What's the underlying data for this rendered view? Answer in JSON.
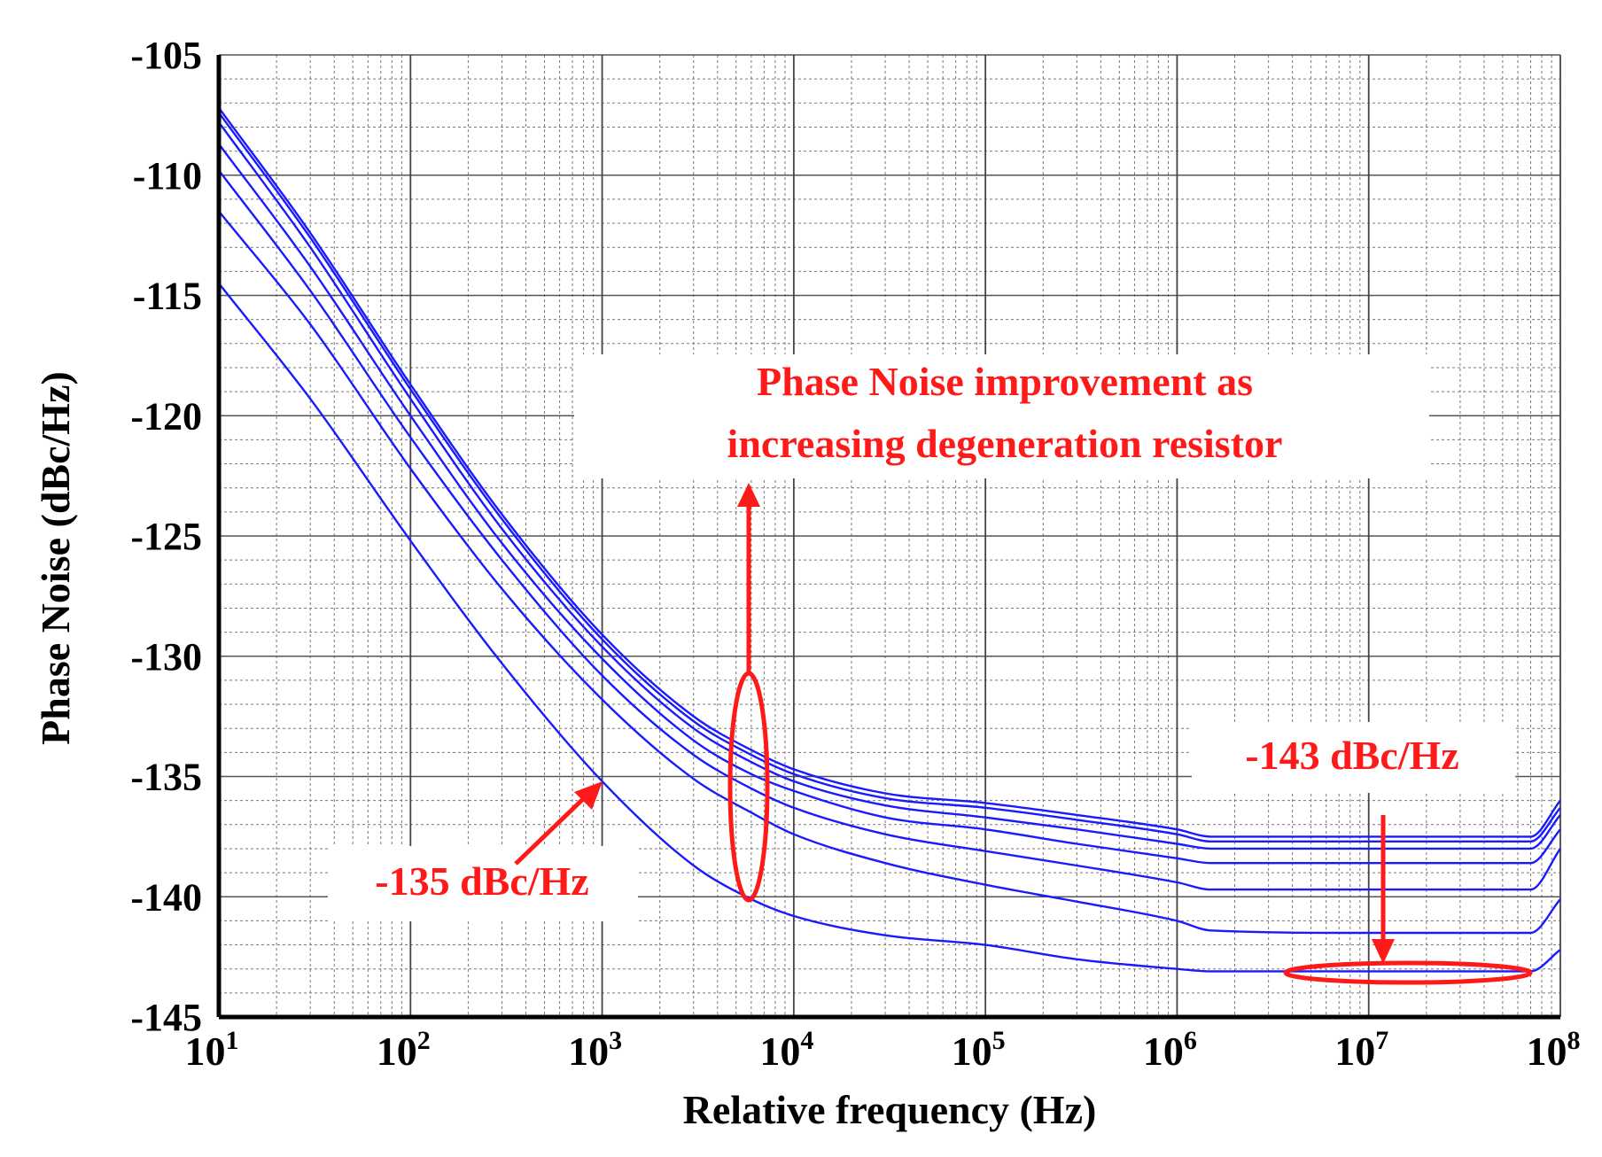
{
  "chart_data": {
    "type": "line",
    "title": "",
    "xlabel": "Relative frequency (Hz)",
    "ylabel": "Phase Noise (dBc/Hz)",
    "x_scale": "log",
    "xlim": [
      10,
      100000000
    ],
    "ylim": [
      -145,
      -105
    ],
    "x_ticks": [
      {
        "value": 10,
        "base": "10",
        "exp": "1"
      },
      {
        "value": 100,
        "base": "10",
        "exp": "2"
      },
      {
        "value": 1000,
        "base": "10",
        "exp": "3"
      },
      {
        "value": 10000,
        "base": "10",
        "exp": "4"
      },
      {
        "value": 100000,
        "base": "10",
        "exp": "5"
      },
      {
        "value": 1000000,
        "base": "10",
        "exp": "6"
      },
      {
        "value": 10000000,
        "base": "10",
        "exp": "7"
      },
      {
        "value": 100000000,
        "base": "10",
        "exp": "8"
      }
    ],
    "y_ticks": [
      -105,
      -110,
      -115,
      -120,
      -125,
      -130,
      -135,
      -140,
      -145
    ],
    "grid": true,
    "legend": "none",
    "series_color": "#1a1aff",
    "annotation_color": "#ff1a1a",
    "x": [
      10,
      30,
      100,
      300,
      1000,
      3000,
      6000,
      10000,
      30000,
      100000,
      300000,
      1000000,
      1500000,
      10000000,
      70000000,
      100000000
    ],
    "series": [
      {
        "values": [
          -107.2,
          -112.4,
          -118.7,
          -124.1,
          -129.1,
          -132.5,
          -133.9,
          -134.7,
          -135.7,
          -136.1,
          -136.6,
          -137.2,
          -137.5,
          -137.5,
          -137.5,
          -136.0
        ]
      },
      {
        "values": [
          -107.4,
          -112.6,
          -118.9,
          -124.3,
          -129.3,
          -132.7,
          -134.1,
          -134.9,
          -135.9,
          -136.3,
          -136.8,
          -137.4,
          -137.7,
          -137.7,
          -137.7,
          -136.3
        ]
      },
      {
        "values": [
          -107.8,
          -113.0,
          -119.3,
          -124.7,
          -129.6,
          -133.0,
          -134.4,
          -135.2,
          -136.2,
          -136.7,
          -137.2,
          -137.8,
          -138.0,
          -138.0,
          -138.0,
          -136.6
        ]
      },
      {
        "values": [
          -108.7,
          -113.8,
          -120.0,
          -125.3,
          -130.1,
          -133.5,
          -134.9,
          -135.6,
          -136.7,
          -137.2,
          -137.8,
          -138.4,
          -138.6,
          -138.6,
          -138.6,
          -137.2
        ]
      },
      {
        "values": [
          -109.8,
          -114.8,
          -120.9,
          -126.0,
          -130.8,
          -134.1,
          -135.5,
          -136.3,
          -137.4,
          -138.1,
          -138.7,
          -139.4,
          -139.7,
          -139.7,
          -139.7,
          -138.0
        ]
      },
      {
        "values": [
          -111.5,
          -116.2,
          -122.2,
          -127.2,
          -131.8,
          -135.1,
          -136.5,
          -137.4,
          -138.6,
          -139.5,
          -140.2,
          -141.0,
          -141.4,
          -141.5,
          -141.5,
          -140.1
        ]
      },
      {
        "values": [
          -114.5,
          -119.3,
          -125.2,
          -130.3,
          -135.2,
          -138.7,
          -140.1,
          -140.8,
          -141.6,
          -142.0,
          -142.6,
          -143.0,
          -143.1,
          -143.1,
          -143.1,
          -142.2
        ]
      }
    ],
    "annotations": [
      {
        "text_lines": [
          "Phase Noise improvement as",
          "increasing degeneration resistor"
        ]
      },
      {
        "text": "-143 dBc/Hz"
      },
      {
        "text": "-135 dBc/Hz"
      }
    ]
  }
}
